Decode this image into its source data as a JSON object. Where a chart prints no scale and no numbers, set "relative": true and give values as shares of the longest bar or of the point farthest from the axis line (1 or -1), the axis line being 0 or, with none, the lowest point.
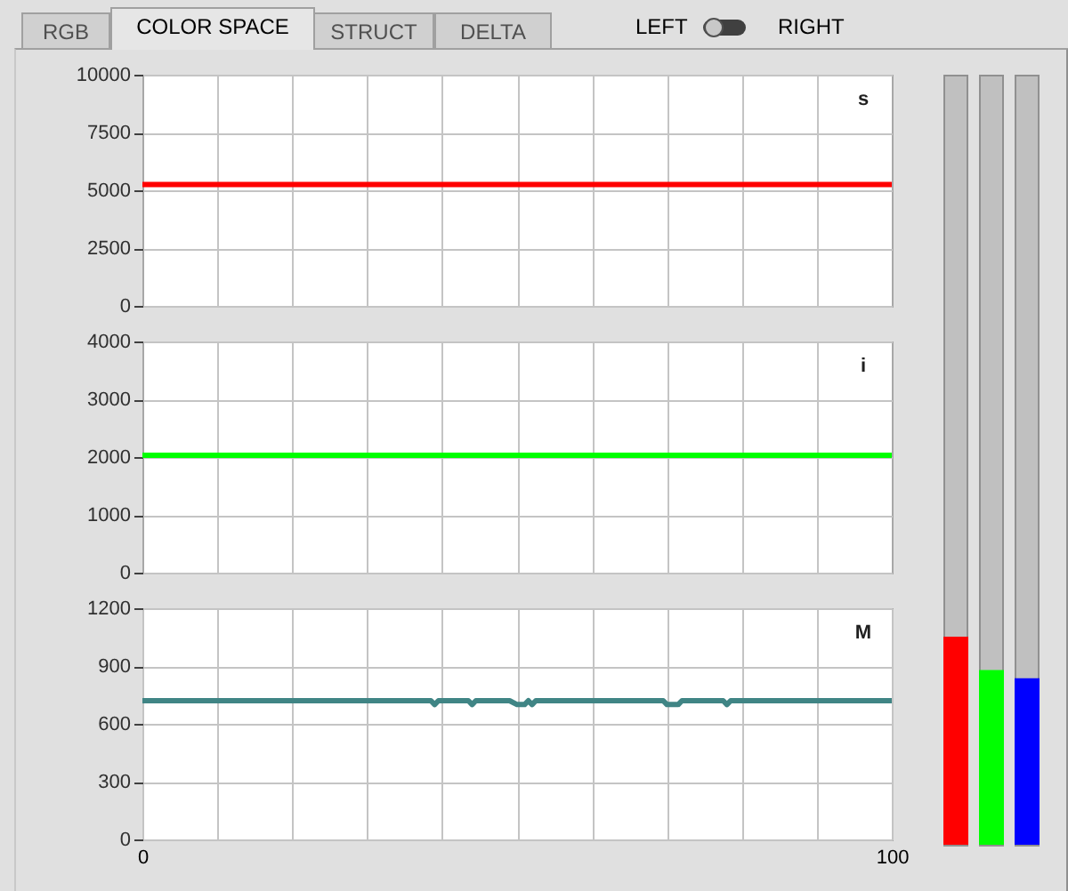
{
  "chart_data": [
    {
      "type": "other",
      "annotations": [
        "RGB",
        "COLOR SPACE",
        "STRUCT",
        "DELTA",
        "LEFT",
        "RIGHT"
      ]
    },
    {
      "type": "line",
      "annotations": [
        "s"
      ],
      "xlim": [
        0,
        100
      ],
      "xticks": [
        {
          "value": 10,
          "label": null
        },
        {
          "value": 20,
          "label": null
        },
        {
          "value": 30,
          "label": null
        },
        {
          "value": 40,
          "label": null
        },
        {
          "value": 50,
          "label": null
        },
        {
          "value": 60,
          "label": null
        },
        {
          "value": 70,
          "label": null
        },
        {
          "value": 80,
          "label": null
        },
        {
          "value": 90,
          "label": null
        }
      ],
      "ylim": [
        0,
        10000
      ],
      "yticks": [
        0,
        2500,
        5000,
        7500,
        10000
      ],
      "grid": true,
      "tick_labels": "y",
      "series": [
        {
          "color": "#ff0000",
          "x": [
            0,
            100
          ],
          "values": [
            5250,
            5250
          ]
        }
      ]
    },
    {
      "type": "line",
      "annotations": [
        "i"
      ],
      "xlim": [
        0,
        100
      ],
      "xticks": [
        {
          "value": 10,
          "label": null
        },
        {
          "value": 20,
          "label": null
        },
        {
          "value": 30,
          "label": null
        },
        {
          "value": 40,
          "label": null
        },
        {
          "value": 50,
          "label": null
        },
        {
          "value": 60,
          "label": null
        },
        {
          "value": 70,
          "label": null
        },
        {
          "value": 80,
          "label": null
        },
        {
          "value": 90,
          "label": null
        }
      ],
      "ylim": [
        0,
        4000
      ],
      "yticks": [
        0,
        1000,
        2000,
        3000,
        4000
      ],
      "grid": true,
      "tick_labels": "y",
      "series": [
        {
          "color": "#00ff00",
          "x": [
            0,
            100
          ],
          "values": [
            2030,
            2030
          ]
        }
      ]
    },
    {
      "type": "line",
      "annotations": [
        "M"
      ],
      "xlim": [
        0,
        100
      ],
      "xticks": [
        0,
        {
          "value": 10,
          "label": null
        },
        {
          "value": 20,
          "label": null
        },
        {
          "value": 30,
          "label": null
        },
        {
          "value": 40,
          "label": null
        },
        {
          "value": 50,
          "label": null
        },
        {
          "value": 60,
          "label": null
        },
        {
          "value": 70,
          "label": null
        },
        {
          "value": 80,
          "label": null
        },
        {
          "value": 90,
          "label": null
        },
        100
      ],
      "ylim": [
        0,
        1200
      ],
      "yticks": [
        0,
        300,
        600,
        900,
        1200
      ],
      "grid": true,
      "series": [
        {
          "color": "#408585",
          "x": [
            0,
            38.5,
            39,
            39.5,
            43.5,
            44,
            44.5,
            49,
            50,
            51,
            51.5,
            52,
            52.5,
            69.5,
            70,
            71.5,
            72,
            77.5,
            78,
            78.5,
            100
          ],
          "values": [
            720,
            720,
            700,
            720,
            720,
            700,
            720,
            720,
            700,
            700,
            720,
            700,
            720,
            720,
            700,
            700,
            720,
            720,
            700,
            720,
            720
          ]
        }
      ]
    },
    {
      "type": "bar",
      "relative": true,
      "categories": [
        null,
        null,
        null
      ],
      "values": [
        1,
        0.84,
        0.8
      ],
      "colors": [
        "#ff0000",
        "#00ff00",
        "#0000ff"
      ]
    }
  ]
}
